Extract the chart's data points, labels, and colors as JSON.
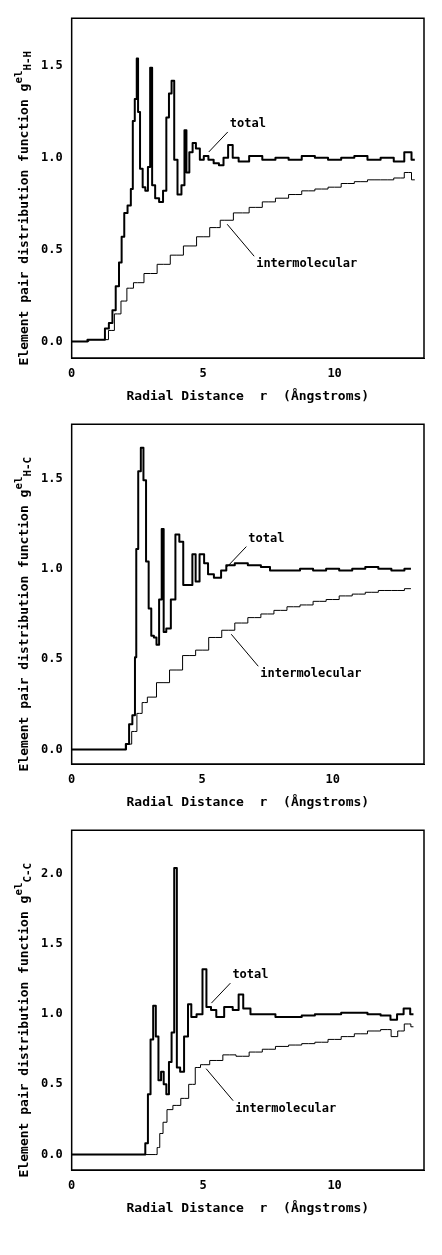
{
  "chart_data": [
    {
      "type": "step",
      "xlabel": "Radial Distance  r  (Ångstroms)",
      "ylabel": "Element pair distribution function  g$^{el}$$_{H-H}$",
      "xlim": [
        0,
        13.4
      ],
      "ylim": [
        -0.09,
        1.76
      ],
      "xticks": [
        0,
        5,
        10
      ],
      "yticks": [
        {
          "value": 0,
          "label": "0.0"
        },
        {
          "value": 0.5,
          "label": "0.5"
        },
        {
          "value": 1,
          "label": "1.0"
        },
        {
          "value": 1.5,
          "label": "1.5"
        }
      ],
      "grid": false,
      "legend": false,
      "marker": "none",
      "line_style": "solid",
      "annotations": [
        {
          "text": "total",
          "x": 5.1,
          "y": 1.01
        },
        {
          "text": "intermolecular",
          "x": 5.8,
          "y": 0.66
        }
      ],
      "series": [
        {
          "color": "#000000",
          "x": [
            0,
            1.2,
            1.33,
            1.5,
            1.6,
            1.75,
            1.85,
            1.95,
            2.05,
            2.2,
            2.3,
            2.35,
            2.45,
            2.5,
            2.55,
            2.65,
            2.75,
            2.85,
            2.95,
            3.02,
            3.1,
            3.25,
            3.4,
            3.55,
            3.65,
            3.75,
            3.85,
            3.95,
            4.1,
            4.25,
            4.33,
            4.4,
            4.55,
            4.65,
            4.8,
            4.95,
            5.1,
            5.3,
            5.5,
            5.7,
            5.85,
            6.05,
            6.2,
            6.5,
            7,
            7.5,
            8,
            8.5,
            9,
            9.5,
            10,
            10.5,
            11,
            11.5,
            12,
            12.5,
            12.8,
            13.05
          ],
          "values": [
            0,
            0.01,
            0.07,
            0.1,
            0.17,
            0.3,
            0.43,
            0.57,
            0.7,
            0.74,
            0.83,
            1.2,
            1.32,
            1.54,
            1.25,
            0.94,
            0.84,
            0.82,
            0.95,
            1.49,
            0.85,
            0.78,
            0.76,
            0.82,
            1.22,
            1.35,
            1.42,
            0.99,
            0.8,
            0.85,
            1.15,
            0.92,
            1.03,
            1.08,
            1.05,
            0.99,
            1.01,
            0.99,
            0.97,
            0.96,
            1,
            1.07,
            1,
            0.98,
            1.01,
            0.99,
            1,
            0.99,
            1.01,
            1,
            0.99,
            1,
            1.01,
            0.99,
            1,
            0.98,
            1.03,
            0.99
          ]
        },
        {
          "color": "#000000",
          "x": [
            0,
            1.3,
            1.5,
            1.75,
            2,
            2.2,
            2.5,
            3,
            3.5,
            4,
            4.5,
            5,
            5.5,
            5.8,
            6.5,
            7,
            7.5,
            8,
            8.5,
            9,
            9.5,
            10,
            10.5,
            11,
            11.5,
            12,
            12.5,
            12.8,
            13.05
          ],
          "values": [
            0,
            0.01,
            0.06,
            0.15,
            0.22,
            0.29,
            0.32,
            0.37,
            0.42,
            0.47,
            0.52,
            0.57,
            0.62,
            0.66,
            0.7,
            0.73,
            0.76,
            0.78,
            0.8,
            0.82,
            0.83,
            0.84,
            0.86,
            0.87,
            0.88,
            0.88,
            0.89,
            0.92,
            0.88
          ]
        }
      ]
    },
    {
      "type": "step",
      "xlabel": "Radial Distance  r  (Ångstroms)",
      "ylabel": "Element pair distribution function  g$^{el}$$_{H-C}$",
      "xlim": [
        0,
        13.5
      ],
      "ylim": [
        -0.08,
        1.8
      ],
      "xticks": [
        0,
        5,
        10
      ],
      "yticks": [
        {
          "value": 0,
          "label": "0.0"
        },
        {
          "value": 0.5,
          "label": "0.5"
        },
        {
          "value": 1,
          "label": "1.0"
        },
        {
          "value": 1.5,
          "label": "1.5"
        }
      ],
      "grid": false,
      "legend": false,
      "marker": "none",
      "line_style": "solid",
      "annotations": [
        {
          "text": "total",
          "x": 5.85,
          "y": 0.99
        },
        {
          "text": "intermolecular",
          "x": 6,
          "y": 0.66
        }
      ],
      "series": [
        {
          "color": "#000000",
          "x": [
            0,
            2,
            2.15,
            2.25,
            2.4,
            2.45,
            2.5,
            2.6,
            2.7,
            2.8,
            2.9,
            3,
            3.1,
            3.2,
            3.3,
            3.4,
            3.5,
            3.55,
            3.7,
            3.9,
            4.05,
            4.2,
            4.35,
            4.55,
            4.7,
            4.8,
            5,
            5.15,
            5.3,
            5.6,
            5.85,
            6,
            6.5,
            7,
            7.5,
            7.7,
            8.5,
            9,
            9.5,
            10,
            10.5,
            11,
            11.5,
            12,
            12.5,
            13
          ],
          "values": [
            0,
            0,
            0.03,
            0.14,
            0.19,
            0.51,
            1.11,
            1.54,
            1.67,
            1.49,
            1.04,
            0.78,
            0.63,
            0.62,
            0.58,
            0.83,
            1.22,
            0.65,
            0.67,
            0.83,
            1.19,
            1.15,
            0.91,
            0.91,
            1.08,
            0.93,
            1.08,
            1.03,
            0.97,
            0.95,
            0.99,
            1.02,
            1.03,
            1.02,
            1.01,
            0.99,
            0.99,
            1,
            0.99,
            1,
            0.99,
            1,
            1.01,
            1,
            0.99,
            1
          ]
        },
        {
          "color": "#000000",
          "x": [
            0,
            2,
            2.2,
            2.4,
            2.6,
            2.8,
            3,
            3.5,
            4,
            4.5,
            5,
            5.5,
            6,
            6.5,
            7,
            7.5,
            8,
            8.5,
            9,
            9.5,
            10,
            10.5,
            11,
            11.5,
            12,
            12.5,
            13
          ],
          "values": [
            0,
            0,
            0.03,
            0.1,
            0.2,
            0.26,
            0.29,
            0.37,
            0.44,
            0.52,
            0.55,
            0.62,
            0.66,
            0.7,
            0.73,
            0.75,
            0.77,
            0.79,
            0.8,
            0.82,
            0.83,
            0.85,
            0.86,
            0.87,
            0.88,
            0.88,
            0.89
          ]
        }
      ]
    },
    {
      "type": "step",
      "xlabel": "Radial Distance  r  (Ångstroms)",
      "ylabel": "Element pair distribution function  g$^{el}$$_{C-C}$",
      "xlim": [
        0,
        13.4
      ],
      "ylim": [
        -0.11,
        2.31
      ],
      "xticks": [
        0,
        5,
        10
      ],
      "yticks": [
        {
          "value": 0,
          "label": "0.0"
        },
        {
          "value": 0.5,
          "label": "0.5"
        },
        {
          "value": 1,
          "label": "1.0"
        },
        {
          "value": 1.5,
          "label": "1.5"
        },
        {
          "value": 2,
          "label": "2.0"
        }
      ],
      "grid": false,
      "legend": false,
      "marker": "none",
      "line_style": "solid",
      "annotations": [
        {
          "text": "total",
          "x": 5.2,
          "y": 1.05
        },
        {
          "text": "intermolecular",
          "x": 5,
          "y": 0.64
        }
      ],
      "series": [
        {
          "color": "#000000",
          "x": [
            0,
            2.75,
            2.85,
            2.95,
            3.05,
            3.15,
            3.25,
            3.35,
            3.45,
            3.55,
            3.65,
            3.75,
            3.85,
            3.95,
            4.05,
            4.2,
            4.35,
            4.5,
            4.6,
            4.9,
            5.05,
            5.2,
            5.4,
            5.6,
            6,
            6.25,
            6.45,
            6.6,
            7,
            7.5,
            8,
            8.5,
            9,
            9.5,
            10,
            10.5,
            11,
            11.5,
            12,
            12.25,
            12.5,
            12.75,
            13
          ],
          "values": [
            0,
            0,
            0.08,
            0.43,
            0.82,
            1.06,
            0.84,
            0.53,
            0.59,
            0.5,
            0.43,
            0.66,
            0.87,
            2.04,
            0.62,
            0.59,
            0.84,
            1.07,
            0.98,
            1,
            1.32,
            1.05,
            1.03,
            0.98,
            1.05,
            1.03,
            1.14,
            1.04,
            1,
            1,
            0.98,
            0.98,
            0.99,
            1,
            1,
            1.01,
            1.01,
            1,
            0.99,
            0.96,
            1,
            1.04,
            1
          ]
        },
        {
          "color": "#000000",
          "x": [
            0,
            3.2,
            3.3,
            3.4,
            3.55,
            3.7,
            4,
            4.3,
            4.6,
            4.8,
            5,
            5.5,
            6,
            6.5,
            7,
            7.5,
            8,
            8.5,
            9,
            9.5,
            10,
            10.5,
            11,
            11.5,
            12,
            12.3,
            12.5,
            12.8,
            13
          ],
          "values": [
            0,
            0,
            0.05,
            0.15,
            0.23,
            0.32,
            0.35,
            0.4,
            0.5,
            0.62,
            0.64,
            0.67,
            0.71,
            0.7,
            0.73,
            0.75,
            0.77,
            0.78,
            0.79,
            0.8,
            0.82,
            0.84,
            0.86,
            0.88,
            0.89,
            0.84,
            0.88,
            0.93,
            0.91
          ]
        }
      ]
    }
  ]
}
